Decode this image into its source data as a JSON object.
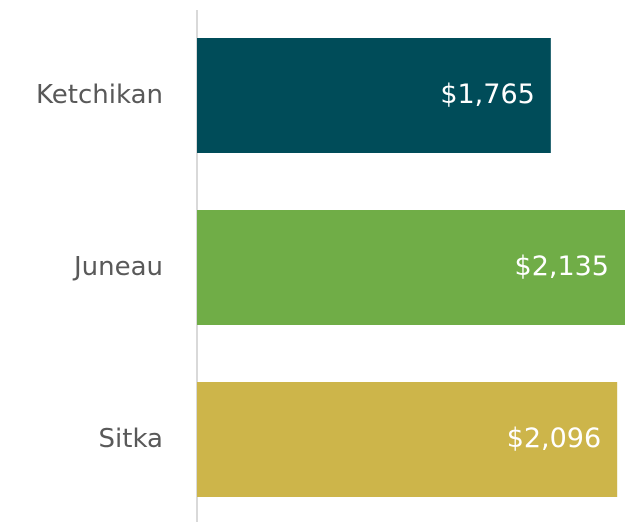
{
  "chart_data": {
    "type": "barh",
    "categories": [
      "Ketchikan",
      "Juneau",
      "Sitka"
    ],
    "values": [
      1765,
      2135,
      2096
    ],
    "value_labels": [
      "$1,765",
      "$2,135",
      "$2,096"
    ],
    "colors": [
      "#004c59",
      "#70ad47",
      "#cdb54a"
    ]
  }
}
